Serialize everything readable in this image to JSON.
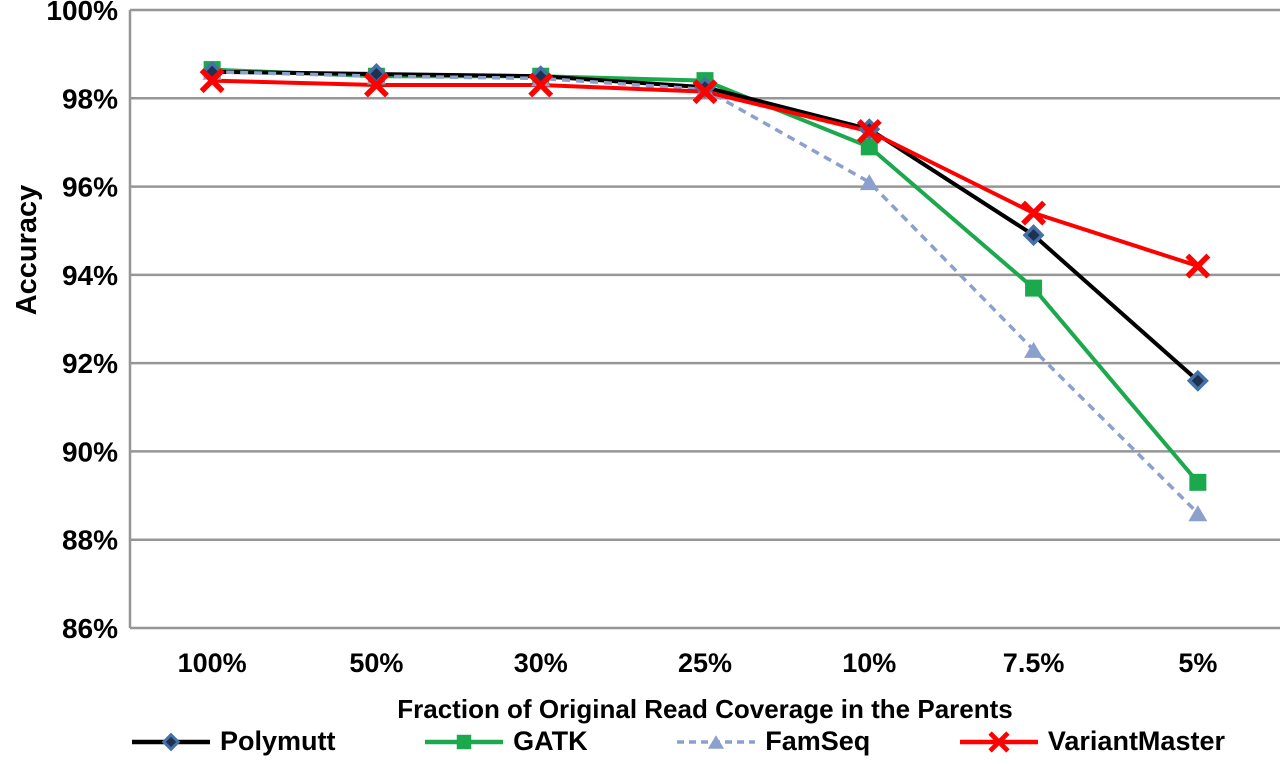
{
  "chart_data": {
    "type": "line",
    "title": "",
    "xlabel": "Fraction of Original Read Coverage in the Parents",
    "ylabel": "Accuracy",
    "categories": [
      "100%",
      "50%",
      "30%",
      "25%",
      "10%",
      "7.5%",
      "5%"
    ],
    "ytick_labels": [
      "100%",
      "98%",
      "96%",
      "94%",
      "92%",
      "90%",
      "88%",
      "86%"
    ],
    "ylim": [
      86,
      100
    ],
    "grid": "horizontal",
    "grid_color": "#969696",
    "legend_position": "bottom",
    "series": [
      {
        "name": "Polymutt",
        "marker": "diamond",
        "line_color": "#000000",
        "marker_fill": "#1F3050",
        "marker_stroke": "#4472A8",
        "dash": "solid",
        "values": [
          98.6,
          98.55,
          98.5,
          98.25,
          97.3,
          94.9,
          91.6
        ]
      },
      {
        "name": "GATK",
        "marker": "square",
        "line_color": "#1CA94E",
        "marker_fill": "#1CA94E",
        "marker_stroke": "#1CA94E",
        "dash": "solid",
        "values": [
          98.65,
          98.5,
          98.5,
          98.4,
          96.9,
          93.7,
          89.3
        ]
      },
      {
        "name": "FamSeq",
        "marker": "triangle",
        "line_color": "#8CA0CE",
        "marker_fill": "#8CA0CE",
        "marker_stroke": "#8CA0CE",
        "dash": "dashed",
        "values": [
          98.6,
          98.5,
          98.45,
          98.2,
          96.1,
          92.3,
          88.6
        ]
      },
      {
        "name": "VariantMaster",
        "marker": "x",
        "line_color": "#FF0000",
        "marker_fill": "#FF0000",
        "marker_stroke": "#FF0000",
        "dash": "solid",
        "values": [
          98.4,
          98.3,
          98.3,
          98.15,
          97.25,
          95.4,
          94.2
        ]
      }
    ]
  }
}
